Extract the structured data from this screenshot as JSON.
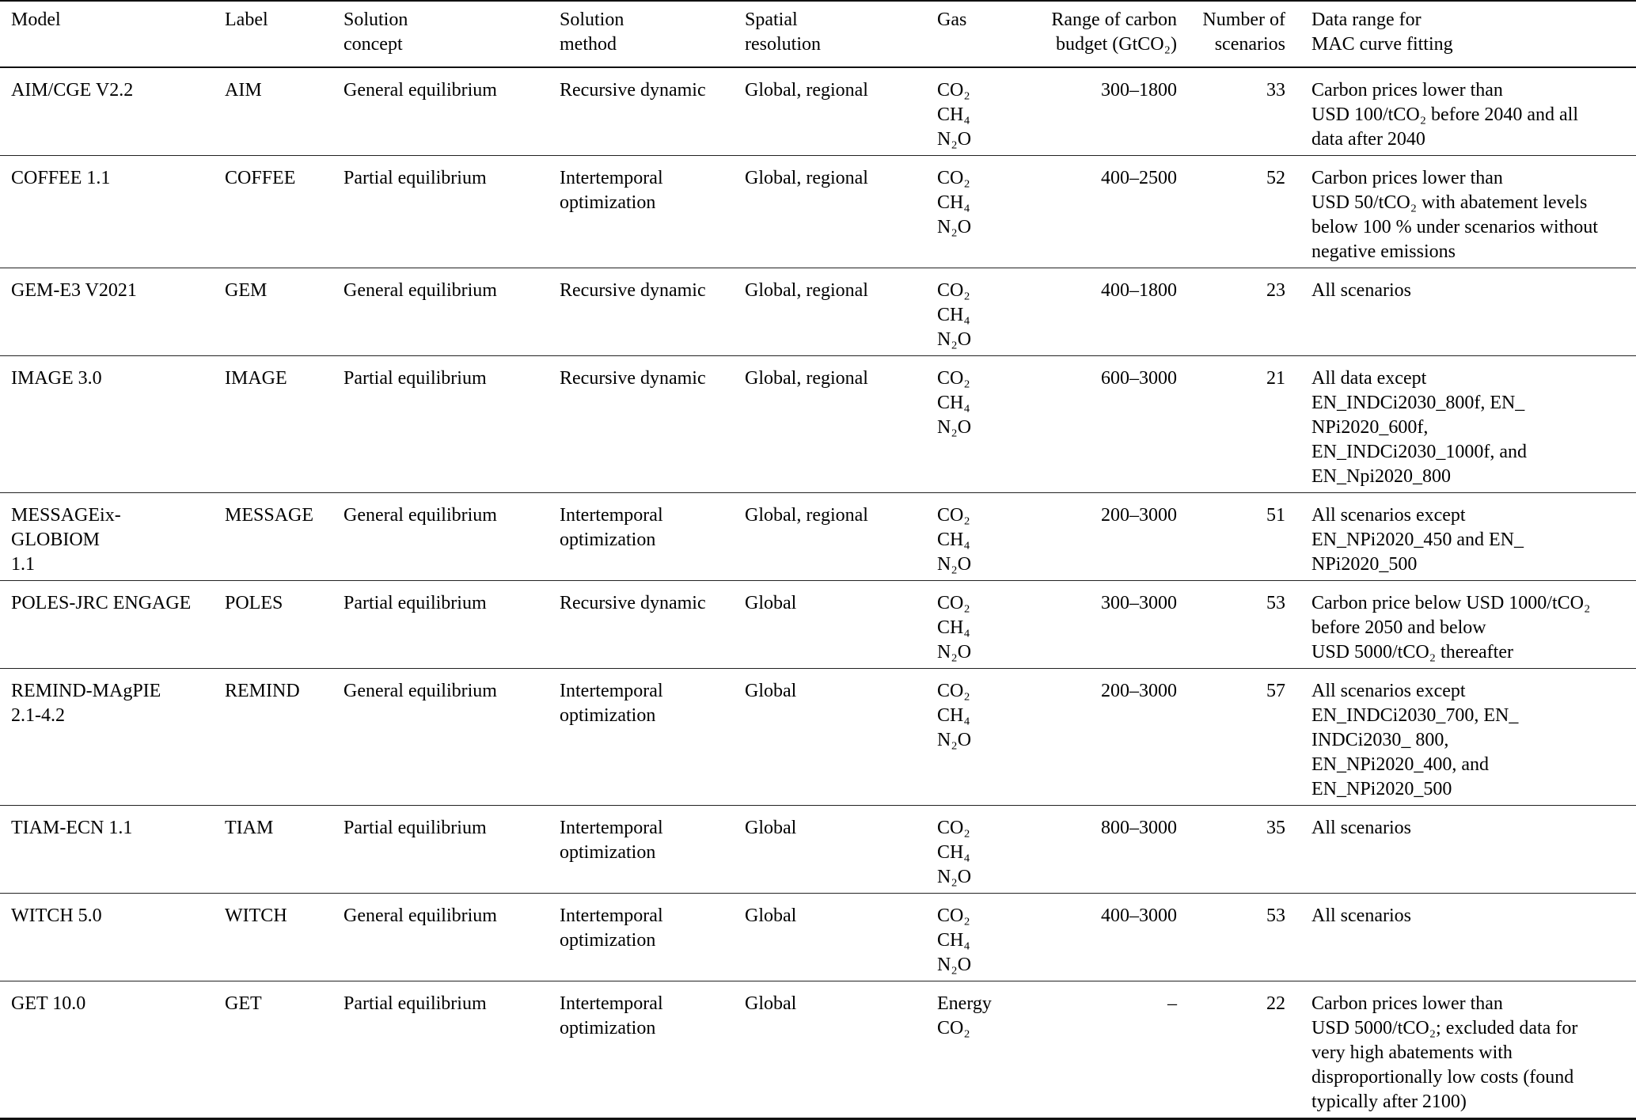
{
  "table": {
    "columns": [
      {
        "label": "Model"
      },
      {
        "label": "Label"
      },
      {
        "label": "Solution\nconcept"
      },
      {
        "label": "Solution\nmethod"
      },
      {
        "label": "Spatial\nresolution"
      },
      {
        "label": "Gas"
      },
      {
        "label": "Range of carbon\nbudget (GtCO₂)"
      },
      {
        "label": "Number of\nscenarios"
      },
      {
        "label": "Data range for\nMAC curve fitting"
      }
    ],
    "rows": [
      {
        "model": "AIM/CGE V2.2",
        "label": "AIM",
        "solution_concept": "General equilibrium",
        "solution_method": "Recursive dynamic",
        "spatial_resolution": "Global, regional",
        "gas": "CO₂\nCH₄\nN₂O",
        "carbon_budget_range": "300–1800",
        "num_scenarios": "33",
        "mac_data_range": "Carbon prices lower than\nUSD 100/tCO₂ before 2040 and all\ndata after 2040"
      },
      {
        "model": "COFFEE 1.1",
        "label": "COFFEE",
        "solution_concept": "Partial equilibrium",
        "solution_method": "Intertemporal\noptimization",
        "spatial_resolution": "Global, regional",
        "gas": "CO₂\nCH₄\nN₂O",
        "carbon_budget_range": "400–2500",
        "num_scenarios": "52",
        "mac_data_range": "Carbon prices lower than\nUSD 50/tCO₂ with abatement levels\nbelow 100 % under scenarios without\nnegative emissions"
      },
      {
        "model": "GEM-E3 V2021",
        "label": "GEM",
        "solution_concept": "General equilibrium",
        "solution_method": "Recursive dynamic",
        "spatial_resolution": "Global, regional",
        "gas": "CO₂\nCH₄\nN₂O",
        "carbon_budget_range": "400–1800",
        "num_scenarios": "23",
        "mac_data_range": "All scenarios"
      },
      {
        "model": "IMAGE 3.0",
        "label": "IMAGE",
        "solution_concept": "Partial equilibrium",
        "solution_method": "Recursive dynamic",
        "spatial_resolution": "Global, regional",
        "gas": "CO₂\nCH₄\nN₂O",
        "carbon_budget_range": "600–3000",
        "num_scenarios": "21",
        "mac_data_range": "All data except\nEN_INDCi2030_800f, EN_\nNPi2020_600f,\nEN_INDCi2030_1000f, and\nEN_Npi2020_800"
      },
      {
        "model": "MESSAGEix-\nGLOBIOM\n1.1",
        "label": "MESSAGE",
        "solution_concept": "General equilibrium",
        "solution_method": "Intertemporal\noptimization",
        "spatial_resolution": "Global, regional",
        "gas": "CO₂\nCH₄\nN₂O",
        "carbon_budget_range": "200–3000",
        "num_scenarios": "51",
        "mac_data_range": "All scenarios except\nEN_NPi2020_450 and EN_\nNPi2020_500"
      },
      {
        "model": "POLES-JRC ENGAGE",
        "label": "POLES",
        "solution_concept": "Partial equilibrium",
        "solution_method": "Recursive dynamic",
        "spatial_resolution": "Global",
        "gas": "CO₂\nCH₄\nN₂O",
        "carbon_budget_range": "300–3000",
        "num_scenarios": "53",
        "mac_data_range": "Carbon price below USD 1000/tCO₂\nbefore 2050 and below\nUSD 5000/tCO₂ thereafter"
      },
      {
        "model": "REMIND-MAgPIE\n2.1-4.2",
        "label": "REMIND",
        "solution_concept": "General equilibrium",
        "solution_method": "Intertemporal\noptimization",
        "spatial_resolution": "Global",
        "gas": "CO₂\nCH₄\nN₂O",
        "carbon_budget_range": "200–3000",
        "num_scenarios": "57",
        "mac_data_range": "All scenarios except\nEN_INDCi2030_700, EN_\nINDCi2030_ 800,\nEN_NPi2020_400, and\nEN_NPi2020_500"
      },
      {
        "model": "TIAM-ECN 1.1",
        "label": "TIAM",
        "solution_concept": "Partial equilibrium",
        "solution_method": "Intertemporal\noptimization",
        "spatial_resolution": "Global",
        "gas": "CO₂\nCH₄\nN₂O",
        "carbon_budget_range": "800–3000",
        "num_scenarios": "35",
        "mac_data_range": "All scenarios"
      },
      {
        "model": "WITCH 5.0",
        "label": "WITCH",
        "solution_concept": "General equilibrium",
        "solution_method": "Intertemporal\noptimization",
        "spatial_resolution": "Global",
        "gas": "CO₂\nCH₄\nN₂O",
        "carbon_budget_range": "400–3000",
        "num_scenarios": "53",
        "mac_data_range": "All scenarios"
      },
      {
        "model": "GET 10.0",
        "label": "GET",
        "solution_concept": "Partial equilibrium",
        "solution_method": "Intertemporal\noptimization",
        "spatial_resolution": "Global",
        "gas": "Energy\nCO₂",
        "carbon_budget_range": "–",
        "num_scenarios": "22",
        "mac_data_range": "Carbon prices lower than\nUSD 5000/tCO₂; excluded data for\nvery high abatements with\ndisproportionally low costs (found\ntypically after 2100)"
      }
    ]
  }
}
